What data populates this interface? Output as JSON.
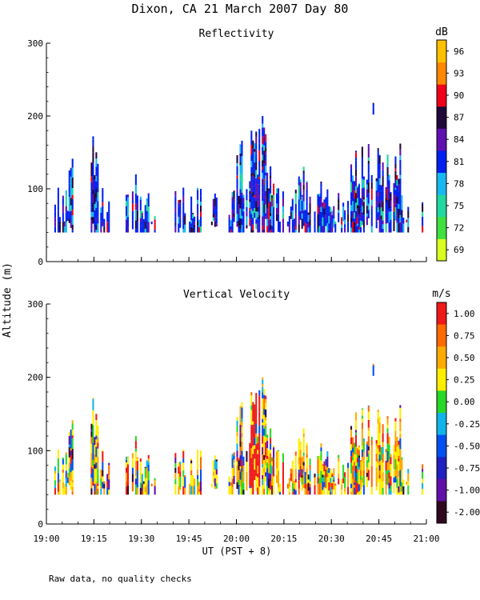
{
  "figure": {
    "title": "Dixon, CA 21 March 2007  Day  80",
    "ylabel": "Altitude (m)",
    "xlabel": "UT  (PST + 8)",
    "footnote": "Raw data, no quality checks"
  },
  "chart_data": [
    {
      "type": "heatmap",
      "title": "Reflectivity",
      "colorbar_unit": "dB",
      "ylabel": "Altitude (m)",
      "x_ticks": [
        "19:00",
        "19:15",
        "19:30",
        "19:45",
        "20:00",
        "20:15",
        "20:30",
        "20:45",
        "21:00"
      ],
      "x_range_minutes": [
        0,
        120
      ],
      "y_ticks": [
        "0",
        "100",
        "200",
        "300"
      ],
      "ylim": [
        0,
        300
      ],
      "colorbar": {
        "labels": [
          "69",
          "72",
          "75",
          "78",
          "81",
          "84",
          "87",
          "90",
          "93",
          "96"
        ],
        "colors": [
          "#d8ff20",
          "#40e040",
          "#20d8a0",
          "#18b8f0",
          "#0020f0",
          "#6010b0",
          "#200838",
          "#f00018",
          "#ff8800",
          "#ffc000"
        ],
        "range": [
          68,
          98
        ]
      },
      "dominant_colors": [
        "#0020f0",
        "#0020f0",
        "#0020f0",
        "#18b8f0",
        "#6010b0",
        "#200838"
      ],
      "accent_colors": [
        "#20d8a0",
        "#f00018"
      ],
      "data_note": "Radar echoes mostly between 40 and 160 m altitude, occasional returns up to 200 m; isolated echo near 210 m at about 20:43."
    },
    {
      "type": "heatmap",
      "title": "Vertical Velocity",
      "colorbar_unit": "m/s",
      "ylabel": "Altitude (m)",
      "xlabel": "UT  (PST + 8)",
      "x_ticks": [
        "19:00",
        "19:15",
        "19:30",
        "19:45",
        "20:00",
        "20:15",
        "20:30",
        "20:45",
        "21:00"
      ],
      "x_range_minutes": [
        0,
        120
      ],
      "y_ticks": [
        "0",
        "100",
        "200",
        "300"
      ],
      "ylim": [
        0,
        300
      ],
      "colorbar": {
        "labels": [
          "1.00",
          "0.75",
          "0.50",
          "0.25",
          "0.00",
          "-0.25",
          "-0.50",
          "-0.75",
          "-1.00",
          "-2.00"
        ],
        "colors": [
          "#f01818",
          "#ff6a00",
          "#ffaa00",
          "#ffee00",
          "#28d828",
          "#10b4e8",
          "#0050f0",
          "#2020c0",
          "#6010a8",
          "#300820"
        ],
        "range": [
          1.25,
          -2.25
        ]
      },
      "dominant_colors": [
        "#ffee00",
        "#ffaa00",
        "#ffee00",
        "#ff6a00",
        "#ffaa00",
        "#f01818",
        "#28d828",
        "#0050f0",
        "#ffee00"
      ],
      "accent_colors": [
        "#6010a8",
        "#300820",
        "#10b4e8"
      ],
      "data_note": "Velocities mostly positive (0.25 to 1.00 m/s) in the same echo columns; strong updrafts near 20:12-20:16."
    }
  ]
}
